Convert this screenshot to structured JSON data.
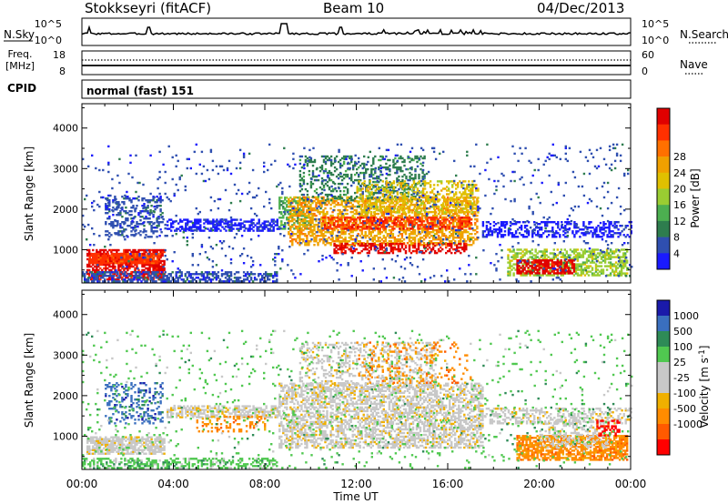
{
  "header": {
    "station": "Stokkseyri (fitACF)",
    "beam": "Beam 10",
    "date": "04/Dec/2013"
  },
  "panel_labels": {
    "nsky": "N.Sky",
    "nsearch": "N.Search",
    "freq_line1": "Freq.",
    "freq_line2": "[MHz]",
    "nave": "Nave",
    "cpid": "CPID",
    "cpid_value": "normal (fast) 151"
  },
  "colors": {
    "power_scale": [
      "#1a1aff",
      "#2f4fb0",
      "#2e7d4e",
      "#4caf50",
      "#9acd32",
      "#e0c000",
      "#f0a000",
      "#ff7000",
      "#ff3000",
      "#e00000"
    ],
    "velocity_scale": [
      "#ff0000",
      "#ff5a00",
      "#ff8c00",
      "#f0b000",
      "#c8c8c8",
      "#c8c8c8",
      "#50c850",
      "#2e8b57",
      "#3a6fbf",
      "#1a1aaa"
    ],
    "gray": "#c0c0c0"
  },
  "chart_data": [
    {
      "type": "line",
      "title": "N.Sky / N.Search",
      "y_ticks_left": [
        "10^5",
        "10^0"
      ],
      "y_ticks_right": [
        "10^5",
        "10^0"
      ],
      "xlim": [
        "00:00",
        "24:00"
      ]
    },
    {
      "type": "line",
      "title": "Freq. / Nave",
      "y_ticks_left": [
        "18",
        "8"
      ],
      "y_ticks_right": [
        "60",
        "0"
      ],
      "series": [
        {
          "name": "Freq. [MHz]",
          "style": "solid",
          "approx_value": 10
        },
        {
          "name": "Nave",
          "style": "dotted",
          "approx_value": 47
        }
      ]
    },
    {
      "type": "heatmap",
      "ylabel": "Slant Range [km]",
      "colorbar_label": "Power [dB]",
      "colorbar_ticks": [
        "4",
        "8",
        "12",
        "16",
        "20",
        "24",
        "28"
      ],
      "y_ticks": [
        "1000",
        "2000",
        "3000",
        "4000"
      ],
      "ylim": [
        180,
        4600
      ],
      "x_ticks": [
        "00:00",
        "04:00",
        "08:00",
        "12:00",
        "16:00",
        "20:00",
        "00:00"
      ],
      "xlim_hours": [
        0,
        24
      ],
      "regions": [
        {
          "t0": 0.2,
          "t1": 3.6,
          "r0": 250,
          "r1": 1000,
          "color": 9,
          "density": 0.6
        },
        {
          "t0": 0.3,
          "t1": 3.4,
          "r0": 650,
          "r1": 900,
          "color": 8,
          "density": 0.9
        },
        {
          "t0": 0.0,
          "t1": 8.5,
          "r0": 200,
          "r1": 450,
          "color": 1,
          "density": 0.5
        },
        {
          "t0": 1.0,
          "t1": 3.5,
          "r0": 1300,
          "r1": 2300,
          "color": 1,
          "density": 0.35
        },
        {
          "t0": 3.7,
          "t1": 8.6,
          "r0": 1450,
          "r1": 1750,
          "color": 0,
          "density": 0.6
        },
        {
          "t0": 8.6,
          "t1": 10.0,
          "r0": 1500,
          "r1": 2300,
          "color": 3,
          "density": 0.5
        },
        {
          "t0": 9.0,
          "t1": 17.3,
          "r0": 1100,
          "r1": 2300,
          "color": 6,
          "density": 0.55
        },
        {
          "t0": 10.5,
          "t1": 17.0,
          "r0": 1500,
          "r1": 1800,
          "color": 8,
          "density": 0.55
        },
        {
          "t0": 11.0,
          "t1": 16.8,
          "r0": 900,
          "r1": 1150,
          "color": 9,
          "density": 0.55
        },
        {
          "t0": 9.5,
          "t1": 15.0,
          "r0": 2200,
          "r1": 3300,
          "color": 2,
          "density": 0.3
        },
        {
          "t0": 12.0,
          "t1": 17.3,
          "r0": 1900,
          "r1": 2700,
          "color": 5,
          "density": 0.4
        },
        {
          "t0": 17.5,
          "t1": 24.0,
          "r0": 1300,
          "r1": 1700,
          "color": 0,
          "density": 0.45
        },
        {
          "t0": 18.6,
          "t1": 23.8,
          "r0": 350,
          "r1": 1000,
          "color": 4,
          "density": 0.55
        },
        {
          "t0": 19.0,
          "t1": 21.5,
          "r0": 400,
          "r1": 750,
          "color": 9,
          "density": 0.7
        },
        {
          "t0": 0.0,
          "t1": 24.0,
          "r0": 200,
          "r1": 3600,
          "color": 1,
          "density": 0.04
        }
      ]
    },
    {
      "type": "heatmap",
      "ylabel": "Slant Range [km]",
      "colorbar_label": "Velocity [m s-1]",
      "colorbar_ticks": [
        "1000",
        "500",
        "100",
        "25",
        "-25",
        "-100",
        "-500",
        "-1000"
      ],
      "y_ticks": [
        "1000",
        "2000",
        "3000",
        "4000"
      ],
      "ylim": [
        180,
        4600
      ],
      "x_ticks": [
        "00:00",
        "04:00",
        "08:00",
        "12:00",
        "16:00",
        "20:00",
        "00:00"
      ],
      "xlabel": "Time UT",
      "xlim_hours": [
        0,
        24
      ],
      "regions": [
        {
          "t0": 0.2,
          "t1": 3.6,
          "r0": 550,
          "r1": 1000,
          "color": 4,
          "density": 0.75
        },
        {
          "t0": 0.0,
          "t1": 8.5,
          "r0": 200,
          "r1": 450,
          "color": 6,
          "density": 0.45
        },
        {
          "t0": 1.0,
          "t1": 3.5,
          "r0": 1300,
          "r1": 2300,
          "color": 8,
          "density": 0.3
        },
        {
          "t0": 3.7,
          "t1": 8.6,
          "r0": 1450,
          "r1": 1750,
          "color": 4,
          "density": 0.6
        },
        {
          "t0": 5.0,
          "t1": 8.0,
          "r0": 1100,
          "r1": 1500,
          "color": 2,
          "density": 0.25
        },
        {
          "t0": 8.6,
          "t1": 17.5,
          "r0": 700,
          "r1": 2300,
          "color": 4,
          "density": 0.55
        },
        {
          "t0": 9.5,
          "t1": 15.5,
          "r0": 2200,
          "r1": 3300,
          "color": 4,
          "density": 0.3
        },
        {
          "t0": 12.0,
          "t1": 17.0,
          "r0": 2300,
          "r1": 3300,
          "color": 2,
          "density": 0.12
        },
        {
          "t0": 17.5,
          "t1": 24.0,
          "r0": 1300,
          "r1": 1700,
          "color": 4,
          "density": 0.4
        },
        {
          "t0": 19.0,
          "t1": 23.8,
          "r0": 400,
          "r1": 1000,
          "color": 2,
          "density": 0.7
        },
        {
          "t0": 20.0,
          "t1": 23.0,
          "r0": 700,
          "r1": 1400,
          "color": 4,
          "density": 0.35
        },
        {
          "t0": 22.5,
          "t1": 23.5,
          "r0": 1000,
          "r1": 1400,
          "color": 0,
          "density": 0.4
        },
        {
          "t0": 0.0,
          "t1": 24.0,
          "r0": 200,
          "r1": 3600,
          "color": 6,
          "density": 0.04
        }
      ]
    }
  ],
  "x_axis": {
    "label": "Time UT",
    "ticks": [
      "00:00",
      "04:00",
      "08:00",
      "12:00",
      "16:00",
      "20:00",
      "00:00"
    ]
  }
}
